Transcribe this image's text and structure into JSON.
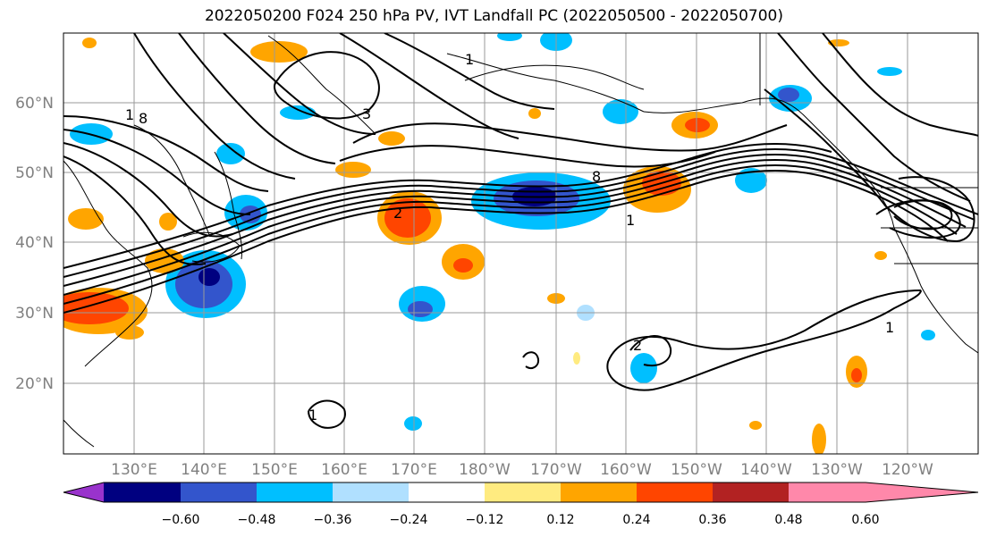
{
  "title": "2022050200 F024 250 hPa PV, IVT Landfall PC (2022050500 - 2022050700)",
  "map": {
    "lat_labels": [
      "60°N",
      "50°N",
      "40°N",
      "30°N",
      "20°N"
    ],
    "lon_labels": [
      "130°E",
      "140°E",
      "150°E",
      "160°E",
      "170°E",
      "180°W",
      "170°W",
      "160°W",
      "150°W",
      "140°W",
      "130°W",
      "120°W"
    ],
    "contour_labels": [
      "1",
      "8",
      "3",
      "8",
      "1",
      "2",
      "1",
      "1",
      "2",
      "1"
    ]
  },
  "colorbar": {
    "colors": [
      "#9933cc",
      "#000080",
      "#3355cc",
      "#00bfff",
      "#b0e0ff",
      "#ffffff",
      "#ffeb80",
      "#ffa500",
      "#ff4500",
      "#b22222",
      "#ff88aa"
    ],
    "ticks": [
      "−0.60",
      "−0.48",
      "−0.36",
      "−0.24",
      "−0.12",
      "0.12",
      "0.24",
      "0.36",
      "0.48",
      "0.60"
    ]
  }
}
